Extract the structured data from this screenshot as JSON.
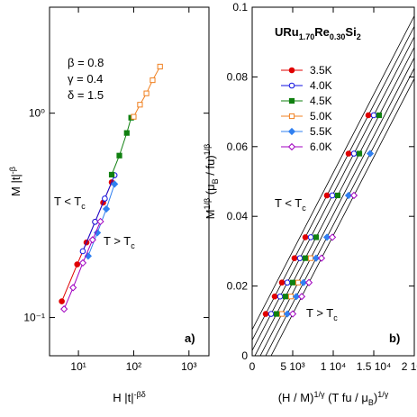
{
  "chart_data": [
    {
      "type": "line",
      "log_x": true,
      "log_y": true,
      "xlabel": [
        {
          "t": "H |t|"
        },
        {
          "t": "-βδ",
          "s": "sup"
        }
      ],
      "ylabel": [
        {
          "t": "M |t|"
        },
        {
          "t": "-β",
          "s": "sup"
        }
      ],
      "xlim": [
        3,
        2300
      ],
      "ylim": [
        0.065,
        3.3
      ],
      "xticks": [
        {
          "value": 10,
          "label": "10¹"
        },
        {
          "value": 100,
          "label": "10²"
        },
        {
          "value": 1000,
          "label": "10³"
        }
      ],
      "yticks": [
        {
          "value": 0.1,
          "label": "10⁻¹"
        },
        {
          "value": 1,
          "label": "10⁰"
        }
      ],
      "annotations": [
        [
          {
            "t": "β = 0.8"
          }
        ],
        [
          {
            "t": "γ = 0.4"
          }
        ],
        [
          {
            "t": "δ = 1.5"
          }
        ],
        [
          {
            "t": "T < T"
          },
          {
            "t": "c",
            "s": "sub"
          }
        ],
        [
          {
            "t": "T > T"
          },
          {
            "t": "c",
            "s": "sub"
          }
        ],
        [
          {
            "t": "a)"
          }
        ]
      ],
      "series": [
        {
          "name": "3.5K",
          "color": "#e00000",
          "marker": "circle",
          "filled": true,
          "x": [
            5,
            9.5,
            14,
            20,
            28,
            40
          ],
          "values": [
            0.12,
            0.182,
            0.233,
            0.294,
            0.365,
            0.459
          ]
        },
        {
          "name": "4.0K",
          "color": "#1010e0",
          "marker": "circle",
          "filled": false,
          "x": [
            12,
            20,
            30,
            45
          ],
          "values": [
            0.211,
            0.294,
            0.382,
            0.497
          ]
        },
        {
          "name": "4.5K",
          "color": "#108010",
          "marker": "square",
          "filled": true,
          "x": [
            40,
            55,
            75,
            90
          ],
          "values": [
            0.5,
            0.62,
            0.8,
            0.95
          ]
        },
        {
          "name": "5.0K",
          "color": "#f08020",
          "marker": "square",
          "filled": false,
          "x": [
            100,
            130,
            170,
            220,
            300
          ],
          "values": [
            0.96,
            1.1,
            1.25,
            1.45,
            1.69
          ]
        },
        {
          "name": "5.5K",
          "color": "#3080f0",
          "marker": "diamond",
          "filled": true,
          "x": [
            15,
            22,
            32,
            45
          ],
          "values": [
            0.2,
            0.26,
            0.34,
            0.45
          ]
        },
        {
          "name": "6.0K",
          "color": "#a000c0",
          "marker": "diamond",
          "filled": false,
          "x": [
            5.5,
            8,
            12,
            18,
            25
          ],
          "values": [
            0.11,
            0.14,
            0.185,
            0.24,
            0.295
          ]
        }
      ]
    },
    {
      "type": "scatter",
      "title": [
        {
          "t": "URu"
        },
        {
          "t": "1.70",
          "s": "sub"
        },
        {
          "t": "Re"
        },
        {
          "t": "0.30",
          "s": "sub"
        },
        {
          "t": "Si"
        },
        {
          "t": "2",
          "s": "sub"
        }
      ],
      "xlabel": [
        {
          "t": "(H / M)"
        },
        {
          "t": "1/γ",
          "s": "sup"
        },
        {
          "t": " (T fu / μ"
        },
        {
          "t": "B",
          "s": "sub"
        },
        {
          "t": ")"
        },
        {
          "t": "1/γ",
          "s": "sup"
        }
      ],
      "ylabel": [
        {
          "t": "M"
        },
        {
          "t": "1/β",
          "s": "sup"
        },
        {
          "t": " (μ"
        },
        {
          "t": "B",
          "s": "sub"
        },
        {
          "t": " / fu)"
        },
        {
          "t": "1/β",
          "s": "sup"
        }
      ],
      "xlim": [
        0,
        20000
      ],
      "ylim": [
        0,
        0.1
      ],
      "xticks": [
        0,
        {
          "value": 5000,
          "label": "5 10³"
        },
        {
          "value": 10000,
          "label": "1 10⁴"
        },
        {
          "value": 15000,
          "label": "1.5 10⁴"
        },
        {
          "value": 20000,
          "label": "2 10⁴"
        }
      ],
      "yticks": [
        0,
        0.02,
        0.04,
        0.06,
        0.08,
        0.1
      ],
      "annotations": [
        [
          {
            "t": "T < T"
          },
          {
            "t": "c",
            "s": "sub"
          }
        ],
        [
          {
            "t": "T > T"
          },
          {
            "t": "c",
            "s": "sub"
          }
        ],
        [
          {
            "t": "b)"
          }
        ]
      ],
      "fit_lines": [
        {
          "x": [
            0,
            20000
          ],
          "y": [
            0.0075,
            0.0975
          ]
        },
        {
          "x": [
            0,
            20000
          ],
          "y": [
            0.0045,
            0.0945
          ]
        },
        {
          "x": [
            0,
            20000
          ],
          "y": [
            0.0015,
            0.0915
          ]
        },
        {
          "x": [
            0,
            20000
          ],
          "y": [
            -0.0015,
            0.0885
          ]
        },
        {
          "x": [
            0,
            20000
          ],
          "y": [
            -0.0045,
            0.0855
          ]
        },
        {
          "x": [
            0,
            20000
          ],
          "y": [
            -0.0075,
            0.0825
          ]
        },
        {
          "x": [
            0,
            20000
          ],
          "y": [
            -0.0105,
            0.0795
          ]
        }
      ],
      "series": [
        {
          "name": "3.5K",
          "color": "#e00000",
          "marker": "circle",
          "filled": true,
          "x": [
            1670,
            2780,
            3670,
            5220,
            6560,
            9220,
            11890,
            14330
          ],
          "values": [
            0.012,
            0.017,
            0.021,
            0.028,
            0.034,
            0.046,
            0.058,
            0.069
          ]
        },
        {
          "name": "4.0K",
          "color": "#1010e0",
          "marker": "circle",
          "filled": false,
          "x": [
            2337,
            3447,
            4337,
            5887,
            7227,
            9887,
            12557,
            14997
          ],
          "values": [
            0.012,
            0.017,
            0.021,
            0.028,
            0.034,
            0.046,
            0.058,
            0.069
          ]
        },
        {
          "name": "4.5K",
          "color": "#108010",
          "marker": "square",
          "filled": true,
          "x": [
            3003,
            4113,
            5003,
            6553,
            7893,
            10553,
            13223,
            15663
          ],
          "values": [
            0.012,
            0.017,
            0.021,
            0.028,
            0.034,
            0.046,
            0.058,
            0.069
          ]
        },
        {
          "name": "5.0K",
          "color": "#f08020",
          "marker": "square",
          "filled": false,
          "x": [
            3670,
            4780,
            5670,
            7220
          ],
          "values": [
            0.012,
            0.017,
            0.021,
            0.028
          ]
        },
        {
          "name": "5.5K",
          "color": "#3080f0",
          "marker": "diamond",
          "filled": true,
          "x": [
            4337,
            5447,
            6337,
            7887,
            9227,
            11887,
            14557
          ],
          "values": [
            0.012,
            0.017,
            0.021,
            0.028,
            0.034,
            0.046,
            0.058
          ]
        },
        {
          "name": "6.0K",
          "color": "#a000c0",
          "marker": "diamond",
          "filled": false,
          "x": [
            5003,
            6113,
            7003,
            8553,
            9893,
            12553
          ],
          "values": [
            0.012,
            0.017,
            0.021,
            0.028,
            0.034,
            0.046
          ]
        }
      ]
    }
  ]
}
